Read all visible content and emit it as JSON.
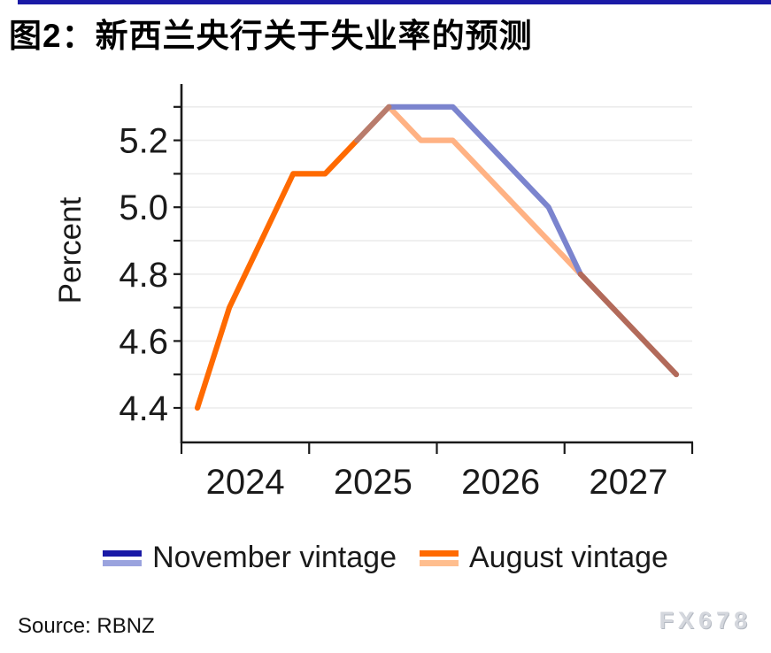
{
  "page": {
    "accent_bar_color": "#1a1aa6"
  },
  "title": "图2：新西兰央行关于失业率的预测",
  "source": "Source: RBNZ",
  "watermark": "FX678",
  "legend": [
    {
      "label": "November vintage",
      "colors": [
        "#1a1aa6",
        "#9aa3de"
      ]
    },
    {
      "label": "August vintage",
      "colors": [
        "#ff6a00",
        "#ffbe8e"
      ]
    }
  ],
  "chart_data": {
    "type": "line",
    "title": "图2：新西兰央行关于失业率的预测",
    "xlabel": "",
    "ylabel": "Percent",
    "ylim": [
      4.3,
      5.36
    ],
    "grid": true,
    "legend_position": "bottom",
    "categories": [
      "2024Q1",
      "2024Q2",
      "2024Q3",
      "2024Q4",
      "2025Q1",
      "2025Q2",
      "2025Q3",
      "2025Q4",
      "2026Q1",
      "2026Q2",
      "2026Q3",
      "2026Q4",
      "2027Q1",
      "2027Q2",
      "2027Q3",
      "2027Q4"
    ],
    "series": [
      {
        "name": "November vintage",
        "values": [
          null,
          null,
          null,
          null,
          null,
          5.2,
          5.3,
          5.3,
          5.3,
          5.2,
          5.1,
          5.0,
          4.8,
          4.7,
          4.6,
          4.5
        ]
      },
      {
        "name": "August vintage",
        "values": [
          4.4,
          4.7,
          4.9,
          5.1,
          5.1,
          5.2,
          5.3,
          5.2,
          5.2,
          5.1,
          5.0,
          4.9,
          4.8,
          4.7,
          4.6,
          4.5
        ]
      }
    ],
    "x_tick_years": [
      2024,
      2025,
      2026,
      2027,
      2028
    ],
    "x_tick_labels": [
      "2024",
      "2025",
      "2026",
      "2027"
    ],
    "y_major_ticks": [
      5.2,
      5.0,
      4.8,
      4.6,
      4.4
    ],
    "y_major_tick_labels": [
      "5.2",
      "5.0",
      "4.8",
      "4.6",
      "4.4"
    ],
    "y_minor_ticks": [
      5.3,
      5.1,
      4.9,
      4.7,
      4.5
    ],
    "segments": [
      {
        "name": "august-forecast",
        "color": "#ffb284",
        "points": [
          [
            6,
            5.3
          ],
          [
            7,
            5.2
          ],
          [
            8,
            5.2
          ],
          [
            12,
            4.8
          ]
        ]
      },
      {
        "name": "november-forecast",
        "color": "#7b84ce",
        "points": [
          [
            6,
            5.3
          ],
          [
            8,
            5.3
          ],
          [
            11,
            5.0
          ],
          [
            12,
            4.8
          ]
        ]
      },
      {
        "name": "august-history",
        "color": "#ff6a00",
        "points": [
          [
            0,
            4.4
          ],
          [
            1,
            4.7
          ],
          [
            2,
            4.9
          ],
          [
            3,
            5.1
          ],
          [
            4,
            5.1
          ],
          [
            5,
            5.2
          ]
        ]
      },
      {
        "name": "overlap-rise",
        "color": "#b97c6c",
        "points": [
          [
            5,
            5.2
          ],
          [
            6,
            5.3
          ]
        ]
      },
      {
        "name": "overlap-fall",
        "color": "#b26a5a",
        "points": [
          [
            12,
            4.8
          ],
          [
            15,
            4.5
          ]
        ]
      }
    ],
    "colors": {
      "gridline": "#ececec",
      "axis": "#1a1a1a",
      "tick_label": "#1a1a1a"
    }
  }
}
